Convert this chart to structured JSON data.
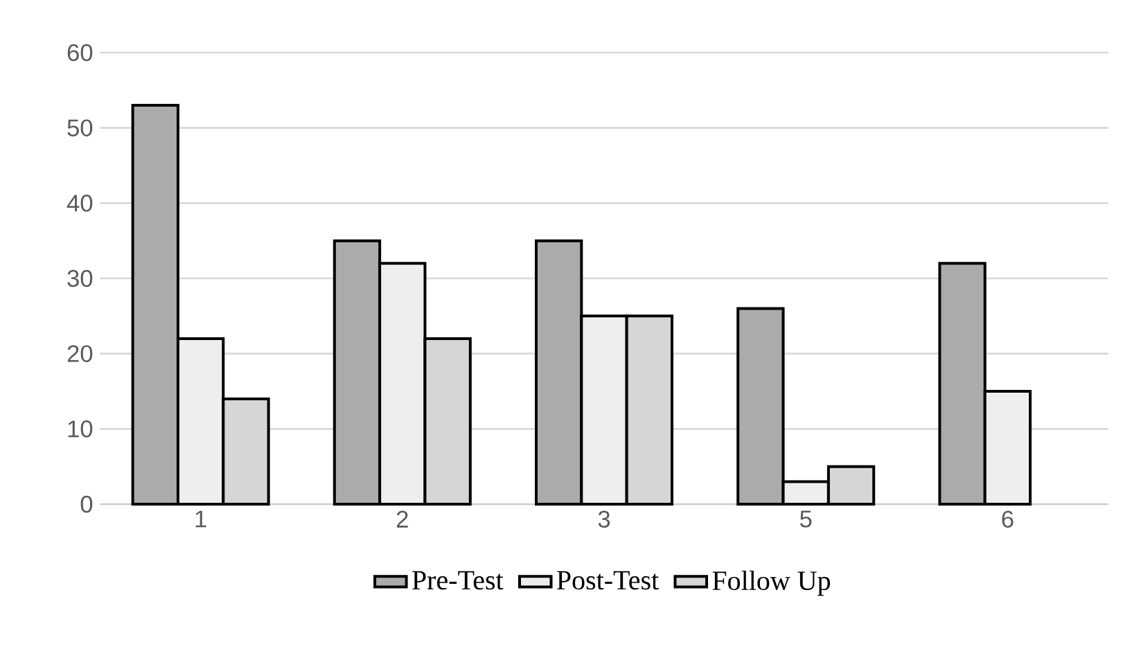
{
  "chart_data": {
    "type": "bar",
    "categories": [
      "1",
      "2",
      "3",
      "5",
      "6"
    ],
    "series": [
      {
        "name": "Pre-Test",
        "color": "#ababab",
        "values": [
          53,
          35,
          35,
          26,
          32
        ]
      },
      {
        "name": "Post-Test",
        "color": "#eeeeee",
        "values": [
          22,
          32,
          25,
          3,
          15
        ]
      },
      {
        "name": "Follow Up",
        "color": "#d6d6d6",
        "values": [
          14,
          22,
          25,
          5,
          null
        ]
      }
    ],
    "ylim": [
      0,
      60
    ],
    "yticks": [
      0,
      10,
      20,
      30,
      40,
      50,
      60
    ],
    "grid": "y",
    "legend": "bottom"
  }
}
